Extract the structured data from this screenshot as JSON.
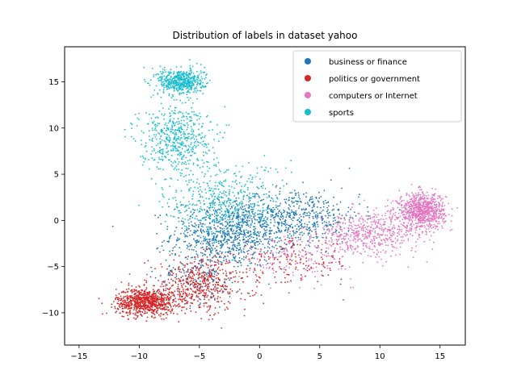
{
  "chart_data": {
    "type": "scatter",
    "title": "Distribution of labels in dataset yahoo",
    "xlabel": "",
    "ylabel": "",
    "xlim": [
      -16.2,
      17.1
    ],
    "ylim": [
      -13.5,
      18.8
    ],
    "xticks": [
      -15,
      -10,
      -5,
      0,
      5,
      10,
      15
    ],
    "yticks": [
      -10,
      -5,
      0,
      5,
      10,
      15
    ],
    "xtick_labels": [
      "−15",
      "−10",
      "−5",
      "0",
      "5",
      "10",
      "15"
    ],
    "ytick_labels": [
      "−10",
      "−5",
      "0",
      "5",
      "10",
      "15"
    ],
    "grid": false,
    "legend_position": "top-right",
    "series": [
      {
        "name": "business or finance",
        "color": "#1f77b4",
        "clusters": [
          {
            "center": [
              -2.5,
              -1.5
            ],
            "spread": [
              4.0,
              3.0
            ],
            "share": 0.55
          },
          {
            "center": [
              3.0,
              0.5
            ],
            "spread": [
              4.5,
              2.5
            ],
            "share": 0.35
          },
          {
            "center": [
              -5.0,
              -6.0
            ],
            "spread": [
              3.0,
              2.5
            ],
            "share": 0.1
          }
        ]
      },
      {
        "name": "politics or government",
        "color": "#d62728",
        "clusters": [
          {
            "center": [
              -9.5,
              -8.8
            ],
            "spread": [
              2.0,
              1.2
            ],
            "share": 0.55
          },
          {
            "center": [
              -5.0,
              -7.0
            ],
            "spread": [
              3.5,
              2.5
            ],
            "share": 0.35
          },
          {
            "center": [
              3.0,
              -4.5
            ],
            "spread": [
              4.0,
              2.0
            ],
            "share": 0.1
          }
        ]
      },
      {
        "name": "computers or Internet",
        "color": "#e377c2",
        "clusters": [
          {
            "center": [
              13.5,
              1.0
            ],
            "spread": [
              1.6,
              1.6
            ],
            "share": 0.55
          },
          {
            "center": [
              9.0,
              -1.5
            ],
            "spread": [
              3.5,
              2.0
            ],
            "share": 0.35
          },
          {
            "center": [
              3.0,
              -4.0
            ],
            "spread": [
              4.0,
              2.0
            ],
            "share": 0.1
          }
        ]
      },
      {
        "name": "sports",
        "color": "#17becf",
        "clusters": [
          {
            "center": [
              -6.5,
              15.0
            ],
            "spread": [
              1.6,
              1.2
            ],
            "share": 0.35
          },
          {
            "center": [
              -7.0,
              9.0
            ],
            "spread": [
              2.5,
              3.0
            ],
            "share": 0.35
          },
          {
            "center": [
              -3.0,
              2.0
            ],
            "spread": [
              4.0,
              3.5
            ],
            "share": 0.3
          }
        ]
      }
    ],
    "points_per_series": 1500
  }
}
